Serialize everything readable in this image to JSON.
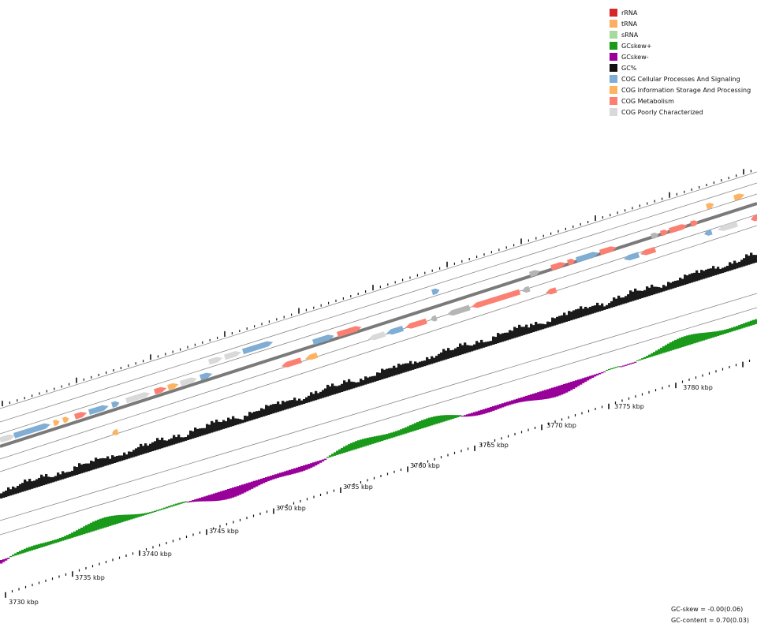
{
  "legend": {
    "items": [
      {
        "label": "rRNA",
        "color": "#d62728"
      },
      {
        "label": "tRNA",
        "color": "#fdae61"
      },
      {
        "label": "sRNA",
        "color": "#a6dba0"
      },
      {
        "label": "GCskew+",
        "color": "#1a9a1a"
      },
      {
        "label": "GCskew-",
        "color": "#990099"
      },
      {
        "label": "GC%",
        "color": "#111111"
      },
      {
        "label": "COG Cellular Processes And Signaling",
        "color": "#7fadd3"
      },
      {
        "label": "COG Information Storage And Processing",
        "color": "#fdb462"
      },
      {
        "label": "COG Metabolism",
        "color": "#fb8072"
      },
      {
        "label": "COG Poorly Characterized",
        "color": "#d9d9d9"
      }
    ]
  },
  "axis": {
    "unit": "kbp",
    "labels": [
      "3730 kbp",
      "3735 kbp",
      "3740 kbp",
      "3745 kbp",
      "3750 kbp",
      "3755 kbp",
      "3760 kbp",
      "3765 kbp",
      "3770 kbp",
      "3775 kbp",
      "3780 kbp"
    ]
  },
  "stats": {
    "gc_skew": "GC-skew = -0.00(0.06)",
    "gc_content": "GC-content = 0.70(0.03)"
  }
}
